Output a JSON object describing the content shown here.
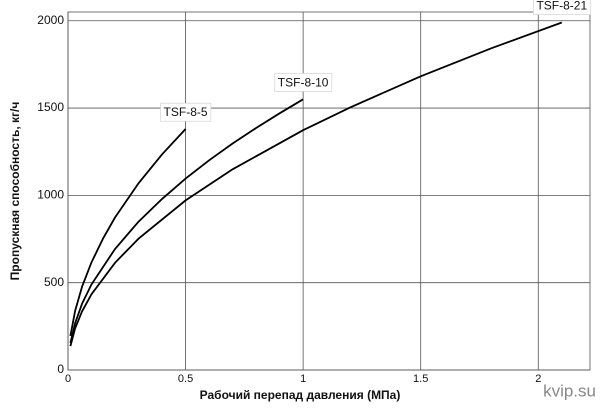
{
  "chart_data": {
    "type": "line",
    "x_label": "Рабочий перепад давления (МПа)",
    "y_label": "Пропускная способность, кг/ч",
    "watermark": "kvip.su",
    "xlim": [
      0,
      2.22
    ],
    "xticks": [
      0,
      0.5,
      1,
      1.5,
      2
    ],
    "ylim": [
      0,
      2050
    ],
    "yticks": [
      0,
      500,
      1000,
      1500,
      2000
    ],
    "grid": true,
    "series": [
      {
        "name": "TSF-8-5",
        "color": "#000000",
        "x": [
          0.01,
          0.03,
          0.06,
          0.1,
          0.15,
          0.2,
          0.3,
          0.4,
          0.5
        ],
        "values": [
          195,
          338,
          478,
          617,
          756,
          873,
          1069,
          1235,
          1380
        ]
      },
      {
        "name": "TSF-8-10",
        "color": "#000000",
        "x": [
          0.01,
          0.03,
          0.06,
          0.1,
          0.2,
          0.3,
          0.4,
          0.5,
          0.6,
          0.7,
          0.8,
          0.9,
          1.0
        ],
        "values": [
          155,
          268,
          380,
          490,
          693,
          849,
          980,
          1096,
          1201,
          1297,
          1386,
          1470,
          1550
        ]
      },
      {
        "name": "TSF-8-21",
        "color": "#000000",
        "x": [
          0.01,
          0.03,
          0.06,
          0.1,
          0.2,
          0.3,
          0.5,
          0.7,
          1.0,
          1.2,
          1.5,
          1.8,
          2.1
        ],
        "values": [
          137,
          238,
          336,
          434,
          614,
          752,
          971,
          1149,
          1373,
          1504,
          1682,
          1842,
          1990
        ]
      }
    ]
  }
}
